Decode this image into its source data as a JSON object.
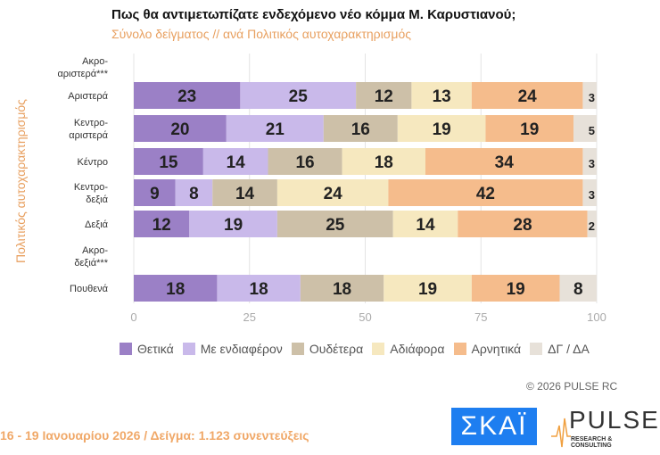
{
  "chart_data": {
    "type": "bar",
    "orientation": "horizontal-stacked",
    "title": "Πως θα αντιμετωπίζατε ενδεχόμενο νέο κόμμα Μ. Καρυστιανού;",
    "subtitle": "Σύνολο δείγματος // ανά Πολιτικός αυτοχαρακτηρισμός",
    "ylabel": "Πολιτικός αυτοχαρακτηρισμός",
    "xlim": [
      0,
      100
    ],
    "xticks": [
      "0",
      "25",
      "50",
      "75",
      "100"
    ],
    "grid": true,
    "legend_position": "bottom",
    "categories": [
      [
        "Ακρο-",
        "αριστερά***"
      ],
      [
        "Αριστερά"
      ],
      [
        "Κεντρο-",
        "αριστερά"
      ],
      [
        "Κέντρο"
      ],
      [
        "Κεντρο-",
        "δεξιά"
      ],
      [
        "Δεξιά"
      ],
      [
        "Ακρο-",
        "δεξιά***"
      ],
      [
        "Πουθενά"
      ]
    ],
    "series": [
      {
        "name": "Θετικά",
        "color": "#9b80c6",
        "values": [
          null,
          23,
          20,
          15,
          9,
          12,
          null,
          18
        ]
      },
      {
        "name": "Με ενδιαφέρον",
        "color": "#c9b9ea",
        "values": [
          null,
          25,
          21,
          14,
          8,
          19,
          null,
          18
        ]
      },
      {
        "name": "Ουδέτερα",
        "color": "#cdc0a8",
        "values": [
          null,
          12,
          16,
          16,
          14,
          25,
          null,
          18
        ]
      },
      {
        "name": "Αδιάφορα",
        "color": "#f6e8bf",
        "values": [
          null,
          13,
          19,
          18,
          24,
          14,
          null,
          19
        ]
      },
      {
        "name": "Αρνητικά",
        "color": "#f5bc8c",
        "values": [
          null,
          24,
          19,
          34,
          42,
          28,
          null,
          19
        ]
      },
      {
        "name": "ΔΓ / ΔΑ",
        "color": "#e7e1d9",
        "values": [
          null,
          3,
          5,
          3,
          3,
          2,
          null,
          8
        ]
      }
    ]
  },
  "copyright": "©  2026  PULSE RC",
  "footer": "16 - 19 Ιανουαρίου 2026  /  Δείγμα:  1.123 συνεντεύξεις",
  "logos": {
    "skai": "ΣΚΑΪ",
    "pulse": "PULSE",
    "pulse_sub": "RESEARCH & CONSULTING"
  }
}
